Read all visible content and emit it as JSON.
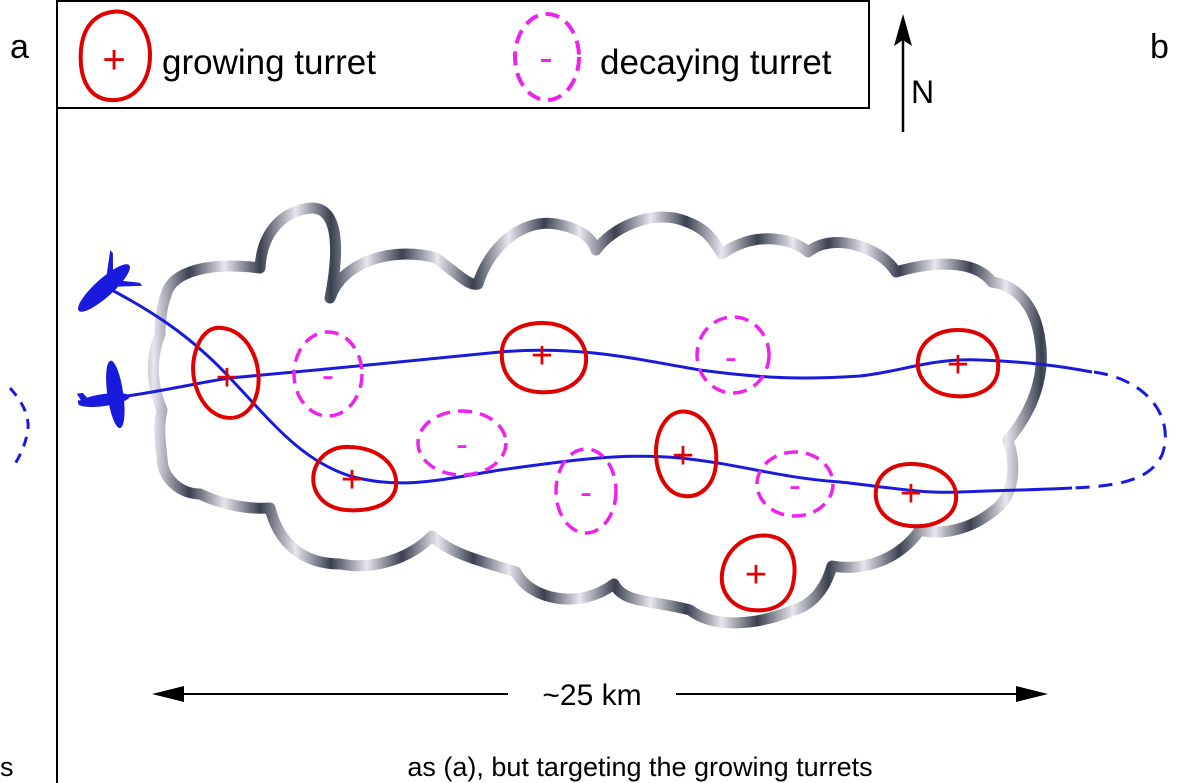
{
  "panel_a": {
    "label": "a",
    "caption_fragment": "s"
  },
  "panel_b": {
    "label": "b",
    "caption": "as (a), but targeting the growing turrets"
  },
  "legend": {
    "growing": {
      "symbol": "+",
      "label": "growing turret"
    },
    "decaying": {
      "symbol": "-",
      "label": "decaying turret"
    }
  },
  "north_arrow": {
    "label": "N"
  },
  "scale_bar": {
    "label": "~25 km"
  },
  "growing_turret_symbol": "+",
  "decaying_turret_symbol": "-",
  "colors": {
    "growing": "#e00000",
    "decaying": "#ee22ee",
    "track": "#1a1adc",
    "cloud_dark": "#3a4050",
    "cloud_light": "#e8e6ee"
  },
  "icons": [
    "aircraft-icon",
    "north-arrow-icon",
    "scale-arrow-icon"
  ]
}
